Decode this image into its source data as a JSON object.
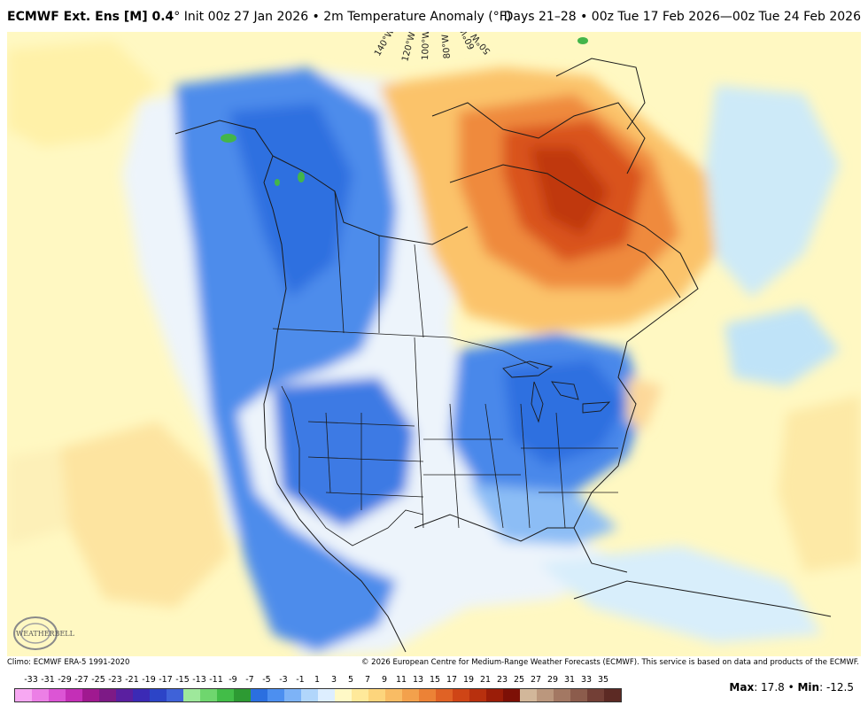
{
  "header": {
    "model": "ECMWF Ext. Ens [M] 0.4",
    "degree": "°",
    "init_info": " Init 00z 27 Jan 2026 • 2m Temperature Anomaly (°F)",
    "valid_period": "Days 21–28 • 00z Tue 17 Feb 2026—00z Tue 24 Feb 2026"
  },
  "map": {
    "longitude_labels": [
      "140°W",
      "120°W",
      "100°W",
      "80°W",
      "60°W",
      "50°W"
    ]
  },
  "footer": {
    "climo": "Climo: ECMWF ERA-5 1991-2020",
    "copyright": "© 2026 European Centre for Medium-Range Weather Forecasts (ECMWF). This service is based on data and products of the ECMWF."
  },
  "logo": {
    "text": "WEATHERBELL"
  },
  "colorbar": {
    "labels": [
      "-33",
      "-31",
      "-29",
      "-27",
      "-25",
      "-23",
      "-21",
      "-19",
      "-17",
      "-15",
      "-13",
      "-11",
      "-9",
      "-7",
      "-5",
      "-3",
      "-1",
      "1",
      "3",
      "5",
      "7",
      "9",
      "11",
      "13",
      "15",
      "17",
      "19",
      "21",
      "23",
      "25",
      "27",
      "29",
      "31",
      "33",
      "35"
    ],
    "colors": [
      "#f7a8f2",
      "#ec7fe6",
      "#dc55d5",
      "#c42fb7",
      "#a01990",
      "#7d1a86",
      "#5a1fa0",
      "#3b2ab5",
      "#2c44c7",
      "#3f62d8",
      "#9ee89b",
      "#6fd66e",
      "#42bd48",
      "#2d9a33",
      "#2b6fe0",
      "#4c8ff0",
      "#7db3f7",
      "#b1d6fb",
      "#ddeeff",
      "#fff9c6",
      "#ffe99a",
      "#fdd57c",
      "#f9bc64",
      "#f3a14c",
      "#ec8236",
      "#e06225",
      "#cf4516",
      "#b8300e",
      "#9b1d08",
      "#7d1006",
      "#d2b79a",
      "#bb977d",
      "#a37863",
      "#8c5c4c",
      "#733f36",
      "#5c2a24"
    ]
  },
  "stats": {
    "max_label": "Max",
    "max_value": ": 17.8",
    "sep": " • ",
    "min_label": "Min",
    "min_value": ": -12.5"
  },
  "colors": {
    "cold_deep": "#2f6fe0",
    "cold_mid": "#5f98ee",
    "cold_light": "#a9d3fb",
    "near_zero": "#f4f8fd",
    "warm_light": "#fff4b8",
    "warm_mid": "#fdd27a",
    "warm_hot": "#ec7a30",
    "warm_max": "#c9350f"
  }
}
